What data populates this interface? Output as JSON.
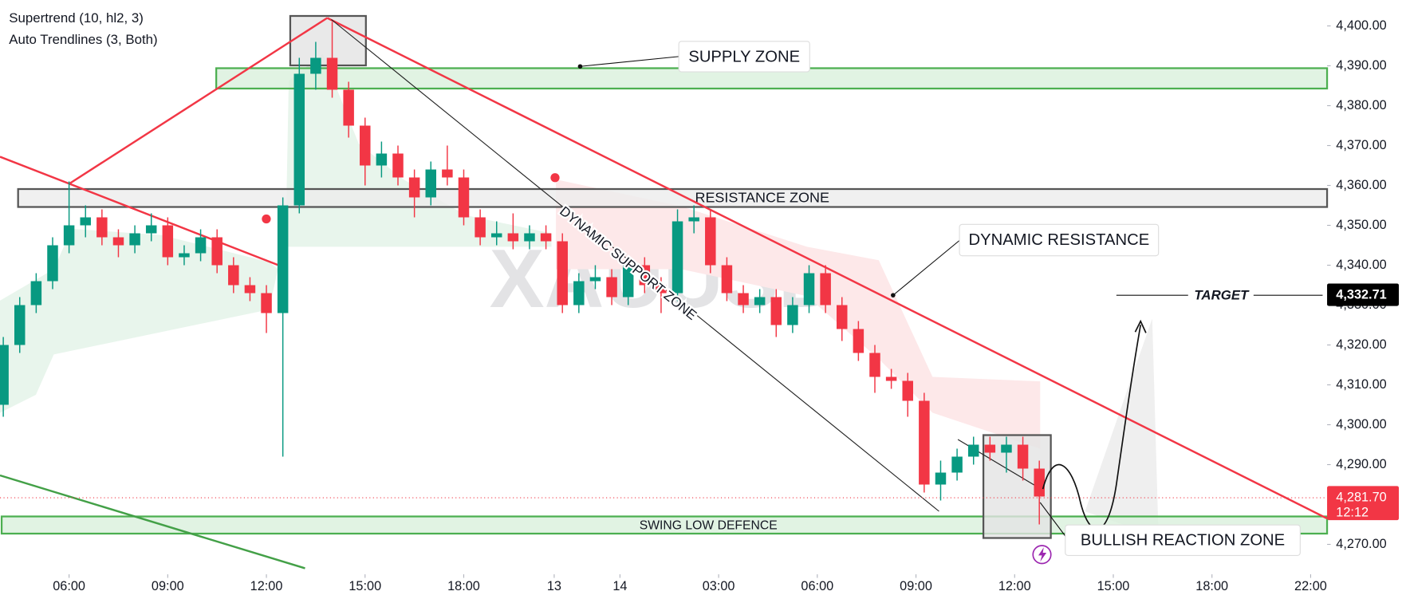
{
  "chart_data": {
    "type": "candlestick",
    "indicators": [
      "Supertrend (10, hl2, 3)",
      "Auto Trendlines (3, Both)"
    ],
    "watermark": "XAUUSD",
    "up_color": "#089981",
    "down_color": "#f23645",
    "x": [
      -8,
      -6,
      -4,
      -2,
      0,
      2,
      4,
      6,
      8,
      10,
      12,
      14,
      16,
      18,
      20,
      22,
      24,
      26,
      28,
      30,
      32,
      34,
      36,
      38,
      40,
      42,
      44,
      46,
      48,
      50,
      52,
      54,
      56,
      58,
      60,
      62,
      64,
      66,
      68,
      70,
      72,
      74,
      76,
      78,
      80,
      82,
      84,
      86,
      88,
      90,
      92,
      94,
      96,
      98,
      100,
      102,
      104,
      106,
      108,
      110,
      112,
      114,
      116,
      118
    ],
    "open": [
      4305,
      4320,
      4330,
      4336,
      4345,
      4350,
      4352,
      4347,
      4345,
      4348,
      4350,
      4342,
      4343,
      4347,
      4340,
      4335,
      4333,
      4328,
      4355,
      4388,
      4392,
      4384,
      4375,
      4365,
      4368,
      4362,
      4357,
      4364,
      4362,
      4352,
      4347,
      4348,
      4346,
      4348,
      4346,
      4330,
      4336,
      4337,
      4332,
      4340,
      4335,
      4333,
      4351,
      4352,
      4340,
      4333,
      4330,
      4332,
      4325,
      4330,
      4338,
      4330,
      4324,
      4318,
      4312,
      4311,
      4306,
      4285,
      4288,
      4292,
      4295,
      4293,
      4295,
      4289
    ],
    "high": [
      4322,
      4332,
      4338,
      4347,
      4361,
      4355,
      4354,
      4349,
      4350,
      4353,
      4352,
      4345,
      4349,
      4349,
      4342,
      4337,
      4335,
      4357,
      4392,
      4396,
      4401,
      4386,
      4377,
      4371,
      4370,
      4364,
      4366,
      4370,
      4364,
      4354,
      4351,
      4353,
      4350,
      4350,
      4348,
      4338,
      4340,
      4339,
      4342,
      4342,
      4337,
      4354,
      4355,
      4354,
      4342,
      4335,
      4334,
      4334,
      4332,
      4340,
      4340,
      4332,
      4326,
      4320,
      4314,
      4313,
      4308,
      4291,
      4294,
      4297,
      4297,
      4297,
      4297,
      4291
    ],
    "low": [
      4302,
      4318,
      4328,
      4334,
      4343,
      4347,
      4345,
      4342,
      4343,
      4346,
      4340,
      4340,
      4341,
      4338,
      4333,
      4331,
      4323,
      4292,
      4353,
      4384,
      4382,
      4372,
      4360,
      4362,
      4360,
      4352,
      4355,
      4360,
      4350,
      4345,
      4345,
      4344,
      4344,
      4344,
      4328,
      4328,
      4334,
      4330,
      4330,
      4333,
      4328,
      4331,
      4348,
      4338,
      4331,
      4328,
      4328,
      4322,
      4323,
      4328,
      4328,
      4321,
      4316,
      4308,
      4309,
      4302,
      4283,
      4281,
      4286,
      4290,
      4291,
      4288,
      4286,
      4275
    ],
    "close": [
      4320,
      4330,
      4336,
      4345,
      4350,
      4352,
      4347,
      4345,
      4348,
      4350,
      4342,
      4343,
      4347,
      4340,
      4335,
      4333,
      4328,
      4355,
      4388,
      4392,
      4384,
      4375,
      4365,
      4368,
      4362,
      4357,
      4364,
      4362,
      4352,
      4347,
      4348,
      4346,
      4348,
      4346,
      4330,
      4336,
      4337,
      4332,
      4340,
      4335,
      4333,
      4351,
      4352,
      4340,
      4333,
      4330,
      4332,
      4325,
      4330,
      4338,
      4330,
      4324,
      4318,
      4312,
      4311,
      4306,
      4285,
      4288,
      4292,
      4295,
      4293,
      4295,
      4289,
      4282
    ],
    "xlim": [
      -8.4,
      153
    ],
    "xticks": [
      {
        "value": 0,
        "label": "06:00"
      },
      {
        "value": 12,
        "label": "09:00"
      },
      {
        "value": 24,
        "label": "12:00"
      },
      {
        "value": 36,
        "label": "15:00"
      },
      {
        "value": 48,
        "label": "18:00"
      },
      {
        "value": 59,
        "label": "13"
      },
      {
        "value": 67,
        "label": "14"
      },
      {
        "value": 79,
        "label": "03:00"
      },
      {
        "value": 91,
        "label": "06:00"
      },
      {
        "value": 103,
        "label": "09:00"
      },
      {
        "value": 115,
        "label": "12:00"
      },
      {
        "value": 127,
        "label": "15:00"
      },
      {
        "value": 139,
        "label": "18:00"
      },
      {
        "value": 151,
        "label": "22:00"
      }
    ],
    "ylim": [
      4262.5,
      4406.5
    ],
    "yticks": [
      {
        "value": 4270,
        "label": "4,270.00"
      },
      {
        "value": 4280,
        "label": "4,280.00"
      },
      {
        "value": 4290,
        "label": "4,290.00"
      },
      {
        "value": 4300,
        "label": "4,300.00"
      },
      {
        "value": 4310,
        "label": "4,310.00"
      },
      {
        "value": 4320,
        "label": "4,320.00"
      },
      {
        "value": 4330,
        "label": "4,330.00"
      },
      {
        "value": 4340,
        "label": "4,340.00"
      },
      {
        "value": 4350,
        "label": "4,350.00"
      },
      {
        "value": 4360,
        "label": "4,360.00"
      },
      {
        "value": 4370,
        "label": "4,370.00"
      },
      {
        "value": 4380,
        "label": "4,380.00"
      },
      {
        "value": 4390,
        "label": "4,390.00"
      },
      {
        "value": 4400,
        "label": "4,400.00"
      }
    ],
    "zones": [
      {
        "xlim": [
          17.9,
          153
        ],
        "ylim": [
          4384.3,
          4389.4
        ],
        "fill": "#d9f0dc",
        "stroke": "#4caf50"
      },
      {
        "label": "RESISTANCE ZONE",
        "xlim": [
          -6.2,
          153
        ],
        "ylim": [
          4354.6,
          4359.1
        ],
        "fill": "#ececec",
        "stroke": "#555555"
      },
      {
        "label": "SWING LOW DEFENCE",
        "xlim": [
          -8.2,
          153
        ],
        "ylim": [
          4272.7,
          4277.0
        ],
        "fill": "#d9f0dc",
        "stroke": "#4caf50"
      },
      {
        "xlim": [
          26.9,
          36.1
        ],
        "ylim": [
          4390.1,
          4402.5
        ],
        "fill": "#e4e4e4",
        "stroke": "#555555"
      },
      {
        "xlim": [
          111.2,
          119.4
        ],
        "ylim": [
          4271.6,
          4297.4
        ],
        "fill": "#e4e4e4",
        "stroke": "#555555"
      }
    ],
    "lines": [
      {
        "points": [
          [
            0,
            4360.4
          ],
          [
            31.4,
            4402
          ]
        ],
        "color": "#f23645"
      },
      {
        "points": [
          [
            31.4,
            4402
          ],
          [
            153,
            4276.5
          ]
        ],
        "color": "#f23645"
      },
      {
        "points": [
          [
            -8.4,
            4367.2
          ],
          [
            26.1,
            4339.5
          ]
        ],
        "color": "#f23645"
      },
      {
        "points": [
          [
            -8.4,
            4287.3
          ],
          [
            28.7,
            4264
          ]
        ],
        "color": "#43a047"
      },
      {
        "points": [
          [
            31.9,
            4401.6
          ],
          [
            105.8,
            4278.3
          ]
        ],
        "color": "#222222"
      },
      {
        "points": [
          [
            108.1,
            4296.3
          ],
          [
            118.1,
            4284
          ]
        ],
        "color": "#222222"
      }
    ],
    "price_labels": [
      {
        "value": 4332.71,
        "label": "4,332.71",
        "color": "#000000"
      },
      {
        "value": 4281.7,
        "label": "4,281.70",
        "sub": "12:12",
        "color": "#f23645"
      }
    ],
    "annotations": {
      "supply": "SUPPLY ZONE",
      "dynamic_resistance": "DYNAMIC RESISTANCE",
      "dynamic_support": "DYNAMIC SUPPORT ZONE",
      "bullish": "BULLISH REACTION ZONE",
      "target": "TARGET"
    }
  }
}
